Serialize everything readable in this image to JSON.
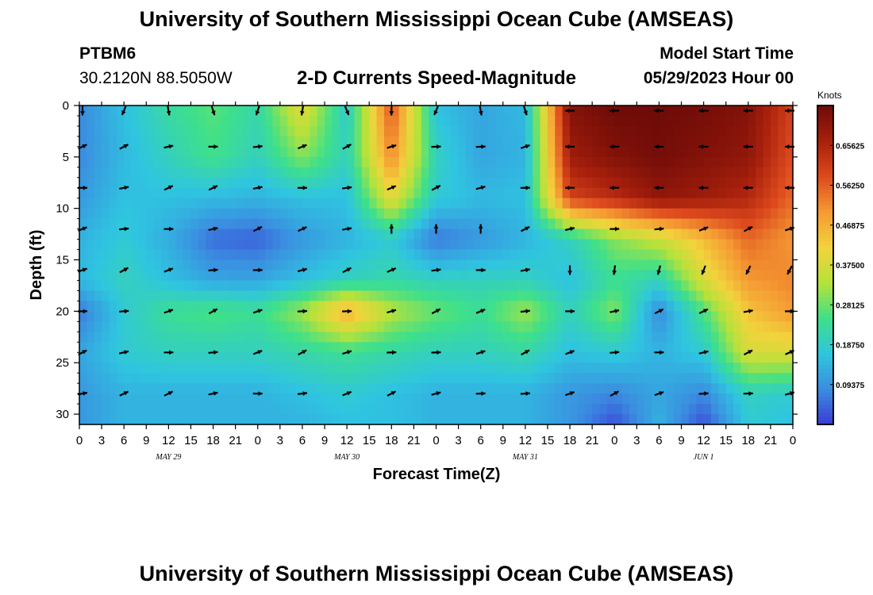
{
  "header": {
    "title": "University of Southern Mississippi Ocean Cube (AMSEAS)",
    "station_id": "PTBM6",
    "station_coords": "30.2120N  88.5050W",
    "plot_title": "2-D Currents Speed-Magnitude",
    "model_label": "Model Start Time",
    "model_time": "05/29/2023 Hour 00"
  },
  "footer": {
    "title": "University of Southern Mississippi Ocean Cube (AMSEAS)"
  },
  "colors": {
    "colormap": [
      "#3b3bd6",
      "#3b8de0",
      "#2fc5e0",
      "#3ee08a",
      "#b5e23a",
      "#f2d33c",
      "#f59a33",
      "#dd4a1e",
      "#a8200c",
      "#6e0b08"
    ],
    "arrow": "#000000",
    "border": "#000000"
  },
  "chart_data": {
    "type": "heatmap",
    "title": "2-D Currents Speed-Magnitude",
    "xlabel": "Forecast Time(Z)",
    "ylabel": "Depth (ft)",
    "x_ticks": [
      "0",
      "3",
      "6",
      "9",
      "12",
      "15",
      "18",
      "21",
      "0",
      "3",
      "6",
      "9",
      "12",
      "15",
      "18",
      "21",
      "0",
      "3",
      "6",
      "9",
      "12",
      "15",
      "18",
      "21",
      "0",
      "3",
      "6",
      "9",
      "12",
      "15",
      "18",
      "21",
      "0"
    ],
    "date_labels": [
      {
        "label": "MAY 29",
        "hour": 12
      },
      {
        "label": "MAY 30",
        "hour": 36
      },
      {
        "label": "MAY 31",
        "hour": 60
      },
      {
        "label": "JUN 1",
        "hour": 84
      }
    ],
    "xlim_hours": [
      0,
      96
    ],
    "y_ticks": [
      "0",
      "5",
      "10",
      "15",
      "20",
      "25",
      "30"
    ],
    "ylim_ft": [
      0,
      31
    ],
    "colorbar": {
      "unit": "Knots",
      "range": [
        0,
        0.75
      ],
      "tick_labels": [
        "0.65625",
        "0.56250",
        "0.46875",
        "0.37500",
        "0.28125",
        "0.18750",
        "0.09375"
      ],
      "tick_values": [
        0.65625,
        0.5625,
        0.46875,
        0.375,
        0.28125,
        0.1875,
        0.09375
      ]
    },
    "speed_keypoints": {
      "hours": [
        0,
        6,
        12,
        18,
        24,
        30,
        36,
        42,
        48,
        54,
        60,
        66,
        72,
        78,
        84,
        90,
        96
      ],
      "depths_ft": [
        0,
        5,
        9,
        13,
        17,
        20,
        24,
        28,
        31
      ],
      "values_knots": [
        [
          0.08,
          0.16,
          0.23,
          0.27,
          0.22,
          0.4,
          0.18,
          0.58,
          0.16,
          0.12,
          0.15,
          0.72,
          0.75,
          0.75,
          0.74,
          0.72,
          0.6
        ],
        [
          0.08,
          0.15,
          0.2,
          0.25,
          0.2,
          0.3,
          0.2,
          0.52,
          0.2,
          0.12,
          0.14,
          0.68,
          0.72,
          0.74,
          0.72,
          0.7,
          0.58
        ],
        [
          0.1,
          0.16,
          0.16,
          0.15,
          0.14,
          0.16,
          0.16,
          0.4,
          0.18,
          0.15,
          0.16,
          0.6,
          0.64,
          0.7,
          0.68,
          0.65,
          0.55
        ],
        [
          0.14,
          0.18,
          0.13,
          0.05,
          0.04,
          0.1,
          0.14,
          0.18,
          0.06,
          0.1,
          0.14,
          0.2,
          0.3,
          0.36,
          0.45,
          0.55,
          0.5
        ],
        [
          0.15,
          0.2,
          0.16,
          0.12,
          0.12,
          0.16,
          0.2,
          0.22,
          0.2,
          0.2,
          0.2,
          0.16,
          0.24,
          0.2,
          0.38,
          0.5,
          0.52
        ],
        [
          0.06,
          0.18,
          0.24,
          0.26,
          0.24,
          0.32,
          0.48,
          0.34,
          0.28,
          0.24,
          0.32,
          0.2,
          0.3,
          0.08,
          0.26,
          0.44,
          0.5
        ],
        [
          0.12,
          0.18,
          0.2,
          0.2,
          0.2,
          0.22,
          0.24,
          0.22,
          0.2,
          0.2,
          0.22,
          0.16,
          0.18,
          0.14,
          0.18,
          0.38,
          0.38
        ],
        [
          0.1,
          0.14,
          0.14,
          0.14,
          0.14,
          0.16,
          0.18,
          0.16,
          0.14,
          0.14,
          0.14,
          0.1,
          0.08,
          0.12,
          0.08,
          0.2,
          0.18
        ],
        [
          0.1,
          0.14,
          0.14,
          0.14,
          0.14,
          0.14,
          0.16,
          0.16,
          0.14,
          0.14,
          0.14,
          0.1,
          0.02,
          0.14,
          0.02,
          0.18,
          0.16
        ]
      ]
    },
    "vector_grid": {
      "note": "current direction arrows; unit vectors (u east, v north) sampled at listed hours/depths",
      "hours": [
        0,
        6,
        12,
        18,
        24,
        30,
        36,
        42,
        48,
        54,
        60,
        66,
        72,
        78,
        84,
        90,
        96
      ],
      "depths_ft": [
        0.5,
        4,
        8,
        12,
        16,
        20,
        24,
        28
      ]
    }
  }
}
